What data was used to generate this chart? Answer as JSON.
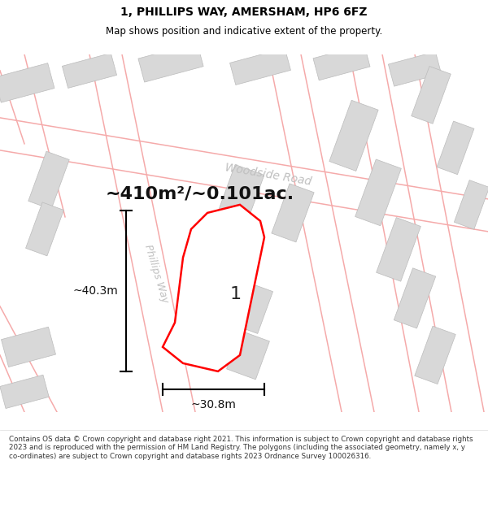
{
  "title_line1": "1, PHILLIPS WAY, AMERSHAM, HP6 6FZ",
  "title_line2": "Map shows position and indicative extent of the property.",
  "area_text": "~410m²/~0.101ac.",
  "height_label": "~40.3m",
  "width_label": "~30.8m",
  "property_number": "1",
  "road_label": "Phillips Way",
  "road_label2": "Woodside Road",
  "footer_text": "Contains OS data © Crown copyright and database right 2021. This information is subject to Crown copyright and database rights 2023 and is reproduced with the permission of HM Land Registry. The polygons (including the associated geometry, namely x, y co-ordinates) are subject to Crown copyright and database rights 2023 Ordnance Survey 100026316.",
  "title_fontsize": 10,
  "subtitle_fontsize": 8.5,
  "area_fontsize": 16,
  "label_fontsize": 10,
  "road_fontsize": 10,
  "footer_fontsize": 6.3,
  "map_bg": "#ffffff",
  "pink": "#f5aaaa",
  "gray_light": "#d8d8d8",
  "gray_dark": "#c8c8c8",
  "road_gray": "#c0c0c0",
  "title_bg": "#ffffff",
  "footer_bg": "#ffffff"
}
